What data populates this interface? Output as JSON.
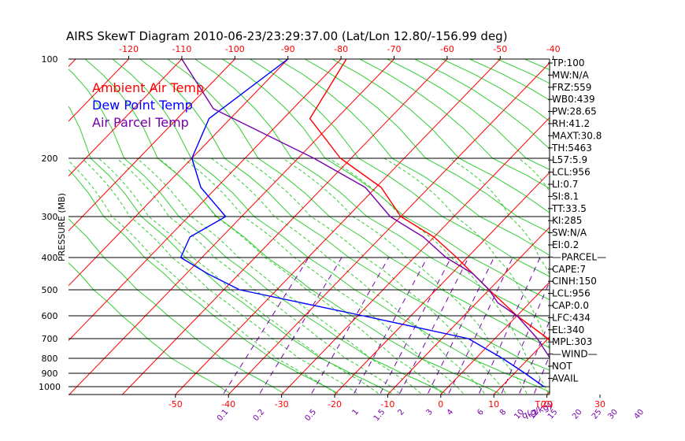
{
  "chart_data": {
    "type": "skewt",
    "title": "AIRS SkewT Diagram 2010-06-23/23:29:37.00 (Lat/Lon 12.80/-156.99 deg)",
    "ylabel": "PRESSURE (MB)",
    "pressure_ticks": [
      100,
      200,
      300,
      400,
      500,
      600,
      700,
      800,
      900,
      1000
    ],
    "top_temp_ticks": [
      "-120",
      "-110",
      "-100",
      "-90",
      "-80",
      "-70",
      "-60",
      "-50",
      "-40"
    ],
    "bottom_temp_ticks": [
      "-50",
      "-40",
      "-30",
      "-20",
      "-10",
      "0",
      "10",
      "20",
      "30"
    ],
    "bottom_axis_label": "T(C)",
    "mixing_ratio_labels": [
      "0.1",
      "0.2",
      "0.5",
      "1",
      "1.5",
      "2",
      "3",
      "4",
      "6",
      "8",
      "10",
      "12",
      "15",
      "20",
      "25",
      "30",
      "40"
    ],
    "mixing_ratio_unit": "q(g/kg)",
    "legend": [
      {
        "label": "Ambient Air Temp",
        "color": "#ff0000"
      },
      {
        "label": "Dew Point Temp",
        "color": "#0000ff"
      },
      {
        "label": "Air Parcel Temp",
        "color": "#7700aa"
      }
    ],
    "series": [
      {
        "name": "Ambient Air Temp",
        "color": "#ff0000",
        "points": [
          [
            100,
            -79
          ],
          [
            160,
            -75
          ],
          [
            200,
            -62
          ],
          [
            250,
            -49
          ],
          [
            300,
            -40
          ],
          [
            350,
            -30
          ],
          [
            400,
            -22
          ],
          [
            450,
            -16
          ],
          [
            500,
            -10
          ],
          [
            550,
            -5
          ],
          [
            600,
            0
          ],
          [
            650,
            5
          ],
          [
            700,
            10
          ],
          [
            750,
            13
          ],
          [
            800,
            15
          ],
          [
            850,
            18
          ],
          [
            900,
            21
          ],
          [
            950,
            23
          ],
          [
            1000,
            25
          ]
        ]
      },
      {
        "name": "Dew Point Temp",
        "color": "#0000ff",
        "points": [
          [
            100,
            -90
          ],
          [
            160,
            -94
          ],
          [
            200,
            -90
          ],
          [
            250,
            -83
          ],
          [
            300,
            -73
          ],
          [
            350,
            -76
          ],
          [
            400,
            -74
          ],
          [
            450,
            -66
          ],
          [
            500,
            -57
          ],
          [
            600,
            -29
          ],
          [
            700,
            -5
          ],
          [
            800,
            5
          ],
          [
            900,
            12
          ],
          [
            950,
            15
          ],
          [
            1000,
            18
          ]
        ]
      },
      {
        "name": "Air Parcel Temp",
        "color": "#7700aa",
        "points": [
          [
            100,
            -110
          ],
          [
            150,
            -95
          ],
          [
            200,
            -67
          ],
          [
            250,
            -52
          ],
          [
            300,
            -42
          ],
          [
            350,
            -32
          ],
          [
            400,
            -24
          ],
          [
            450,
            -16
          ],
          [
            500,
            -10
          ],
          [
            550,
            -6
          ],
          [
            600,
            0
          ],
          [
            650,
            4
          ],
          [
            700,
            8
          ],
          [
            750,
            11
          ],
          [
            800,
            14
          ],
          [
            850,
            16
          ],
          [
            900,
            18
          ],
          [
            950,
            20
          ],
          [
            1000,
            25
          ]
        ]
      }
    ],
    "indices": [
      "TP:100",
      "MW:N/A",
      "FRZ:559",
      "WB0:439",
      "PW:28.65",
      "RH:41.2",
      "MAXT:30.8",
      "TH:5463",
      "L57:5.9",
      "LCL:956",
      "LI:0.7",
      "SI:8.1",
      "TT:33.5",
      "KI:285",
      "SW:N/A",
      "EI:0.2",
      "—PARCEL—",
      "CAPE:7",
      "CINH:150",
      "LCL:956",
      "CAP:0.0",
      "LFC:434",
      "EL:340",
      "MPL:303",
      "—WIND—",
      "NOT",
      "AVAIL"
    ]
  }
}
